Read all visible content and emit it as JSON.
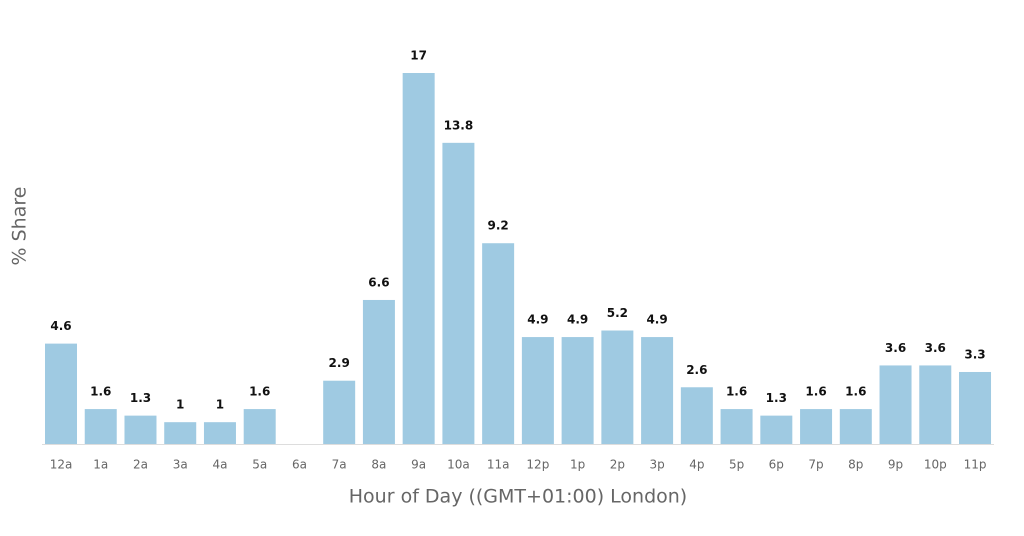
{
  "chart_data": {
    "type": "bar",
    "x_label": "Hour of Day ((GMT+01:00) London)",
    "y_label": "% Share",
    "categories": [
      "12a",
      "1a",
      "2a",
      "3a",
      "4a",
      "5a",
      "6a",
      "7a",
      "8a",
      "9a",
      "10a",
      "11a",
      "12p",
      "1p",
      "2p",
      "3p",
      "4p",
      "5p",
      "6p",
      "7p",
      "8p",
      "9p",
      "10p",
      "11p"
    ],
    "values": [
      4.6,
      1.6,
      1.3,
      1,
      1,
      1.6,
      null,
      2.9,
      6.6,
      17,
      13.8,
      9.2,
      4.9,
      4.9,
      5.2,
      4.9,
      2.6,
      1.6,
      1.3,
      1.6,
      1.6,
      3.6,
      3.6,
      3.3
    ],
    "color": "#9fcae2"
  }
}
